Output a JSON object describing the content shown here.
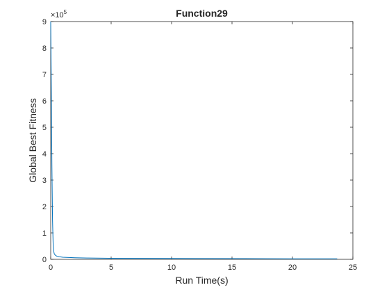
{
  "chart_data": {
    "type": "line",
    "title": "Function29",
    "xlabel": "Run Time(s)",
    "ylabel": "Global Best Fitness",
    "xlim": [
      0,
      25
    ],
    "ylim": [
      0,
      9
    ],
    "x_ticks": [
      0,
      5,
      10,
      15,
      20,
      25
    ],
    "y_ticks": [
      0,
      1,
      2,
      3,
      4,
      5,
      6,
      7,
      8,
      9
    ],
    "y_exponent_label": "×10",
    "y_exponent": "5",
    "grid": false,
    "line_color": "#0072bd",
    "series": [
      {
        "x": [
          0.0,
          0.05,
          0.1,
          0.15,
          0.2,
          0.25,
          0.3,
          0.4,
          0.5,
          0.7,
          1.0,
          1.5,
          2.0,
          3.0,
          5.0,
          8.0,
          12.0,
          16.0,
          20.0,
          23.7
        ],
        "y": [
          9.0,
          6.5,
          3.5,
          1.5,
          0.6,
          0.3,
          0.2,
          0.15,
          0.12,
          0.1,
          0.08,
          0.07,
          0.06,
          0.05,
          0.04,
          0.035,
          0.03,
          0.025,
          0.02,
          0.02
        ]
      }
    ]
  }
}
